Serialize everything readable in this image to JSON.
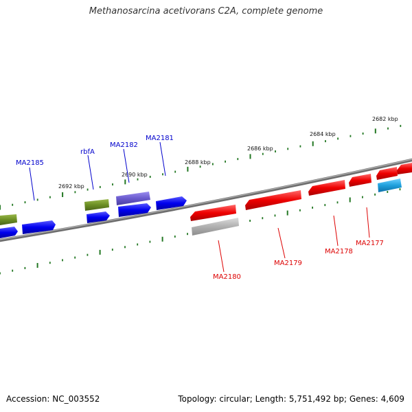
{
  "title": "Methanosarcina acetivorans C2A, complete genome",
  "footer": {
    "accession": "Accession: NC_003552",
    "summary": "Topology: circular; Length: 5,751,492 bp; Genes: 4,609"
  },
  "scale_labels": [
    "2682 kbp",
    "2684 kbp",
    "2686 kbp",
    "2688 kbp",
    "2690 kbp",
    "2692 kbp"
  ],
  "gene_labels": {
    "forward": [
      "MA2185",
      "rbfA",
      "MA2182",
      "MA2181"
    ],
    "reverse": [
      "MA2180",
      "MA2179",
      "MA2178",
      "MA2177"
    ]
  },
  "colors": {
    "forward_label": "#0000cc",
    "reverse_label": "#dd0000",
    "backbone": "#808080",
    "ticks": "#227722",
    "blue_gene": "#0000ee",
    "red_gene": "#ee0000",
    "olive_gene": "#6b8e23",
    "purple_gene": "#6a5acd",
    "gray_gene": "#b0b0b0",
    "cyan_gene": "#1ea0dc"
  }
}
